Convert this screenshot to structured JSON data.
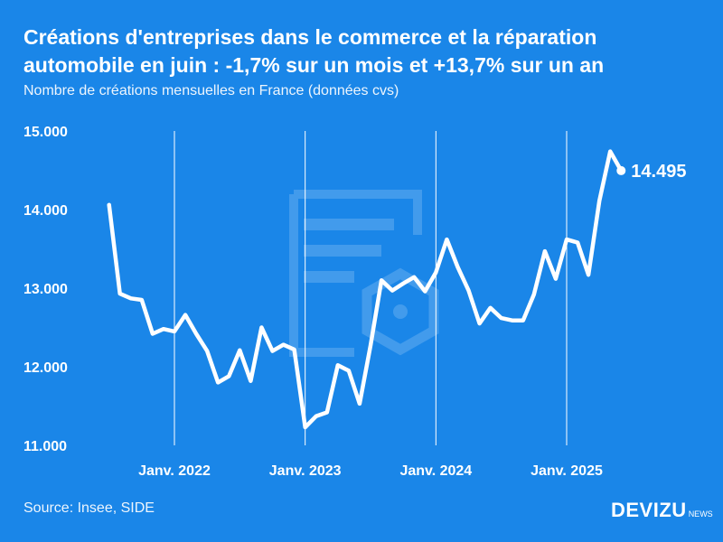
{
  "title_line1": "Créations d'entreprises dans le commerce et la réparation",
  "title_line2": "automobile en juin : -1,7% sur un mois et +13,7% sur un an",
  "subtitle": "Nombre de créations mensuelles en France (données cvs)",
  "source": "Source: Insee, SIDE",
  "brand": {
    "name": "DEVIZU",
    "suffix": "NEWS"
  },
  "colors": {
    "background": "#1a86e8",
    "line": "#ffffff",
    "watermark": "#5aaaf0"
  },
  "chart_data": {
    "type": "line",
    "title": "Créations d'entreprises dans le commerce et la réparation automobile en juin : -1,7% sur un mois et +13,7% sur un an",
    "ylabel": "",
    "xlabel": "",
    "ylim": [
      11000,
      15000
    ],
    "y_ticks": [
      15000,
      14000,
      13000,
      12000,
      11000
    ],
    "y_tick_labels": [
      "15.000",
      "14.000",
      "13.000",
      "12.000",
      "11.000"
    ],
    "x_ticks": [
      "2022-01",
      "2023-01",
      "2024-01",
      "2025-01"
    ],
    "x_tick_labels": [
      "Janv. 2022",
      "Janv. 2023",
      "Janv. 2024",
      "Janv. 2025"
    ],
    "x_range": [
      "2021-06",
      "2025-06"
    ],
    "grid": "vertical lines at January",
    "end_label": "14.495",
    "series": [
      {
        "x": [
          "2021-07",
          "2021-08",
          "2021-09",
          "2021-10",
          "2021-11",
          "2021-12",
          "2022-01",
          "2022-02",
          "2022-03",
          "2022-04",
          "2022-05",
          "2022-06",
          "2022-07",
          "2022-08",
          "2022-09",
          "2022-10",
          "2022-11",
          "2022-12",
          "2023-01",
          "2023-02",
          "2023-03",
          "2023-04",
          "2023-05",
          "2023-06",
          "2023-07",
          "2023-08",
          "2023-09",
          "2023-10",
          "2023-11",
          "2023-12",
          "2024-01",
          "2024-02",
          "2024-03",
          "2024-04",
          "2024-05",
          "2024-06",
          "2024-07",
          "2024-08",
          "2024-09",
          "2024-10",
          "2024-11",
          "2024-12",
          "2025-01",
          "2025-02",
          "2025-03",
          "2025-04",
          "2025-05",
          "2025-06"
        ],
        "values": [
          14060,
          12930,
          12870,
          12850,
          12420,
          12480,
          12450,
          12660,
          12420,
          12200,
          11800,
          11880,
          12210,
          11820,
          12500,
          12200,
          12280,
          12220,
          11230,
          11370,
          11420,
          12020,
          11950,
          11530,
          12270,
          13100,
          12970,
          13060,
          13140,
          12960,
          13200,
          13620,
          13270,
          12970,
          12550,
          12750,
          12620,
          12590,
          12590,
          12920,
          13470,
          13120,
          13620,
          13580,
          13170,
          14110,
          14740,
          14495
        ]
      }
    ]
  }
}
